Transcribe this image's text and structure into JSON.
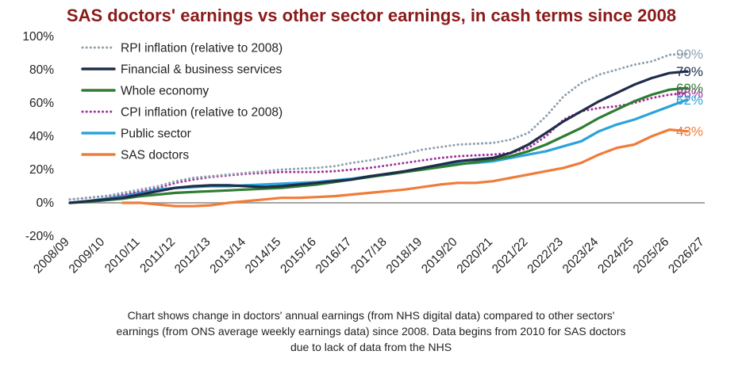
{
  "chart_data": {
    "type": "line",
    "title": "SAS doctors' earnings vs other sector earnings, in cash terms since 2008",
    "title_color": "#8B1A1A",
    "xlabel": "",
    "ylabel": "",
    "ylim": [
      -20,
      100
    ],
    "yticks": [
      -20,
      0,
      20,
      40,
      60,
      80,
      100
    ],
    "ytick_labels": [
      "-20%",
      "0%",
      "20%",
      "40%",
      "60%",
      "80%",
      "100%"
    ],
    "x_range": [
      0,
      18
    ],
    "categories": [
      "2008/09",
      "2009/10",
      "2010/11",
      "2011/12",
      "2012/13",
      "2013/14",
      "2014/15",
      "2015/16",
      "2016/17",
      "2017/18",
      "2018/19",
      "2019/20",
      "2020/21",
      "2021/22",
      "2022/23",
      "2023/24",
      "2024/25",
      "2025/26",
      "2026/27"
    ],
    "zero_line_color": "#999999",
    "series": [
      {
        "name": "RPI inflation (relative to 2008)",
        "color": "#8FA0AD",
        "style": "dotted",
        "end_label": "90%",
        "x": [
          0,
          0.5,
          1,
          1.5,
          2,
          2.5,
          3,
          3.5,
          4,
          4.5,
          5,
          5.5,
          6,
          6.5,
          7,
          7.5,
          8,
          8.5,
          9,
          9.5,
          10,
          10.5,
          11,
          11.5,
          12,
          12.5,
          13,
          13.5,
          14,
          14.5,
          15,
          15.5,
          16,
          16.5,
          17,
          17.5
        ],
        "y": [
          2,
          3,
          4,
          6,
          8,
          10,
          13,
          15,
          16,
          17,
          18,
          19,
          20,
          20.5,
          21,
          22,
          24,
          25.5,
          27.5,
          29.5,
          32,
          33.5,
          35,
          35.5,
          36,
          38,
          42,
          52,
          64,
          72,
          77,
          80,
          83,
          85,
          89,
          89.5
        ]
      },
      {
        "name": "Financial & business services",
        "color": "#1F2D4A",
        "style": "solid",
        "end_label": "79%",
        "x": [
          0,
          0.5,
          1,
          1.5,
          2,
          2.5,
          3,
          3.5,
          4,
          4.5,
          5,
          5.5,
          6,
          6.5,
          7,
          7.5,
          8,
          8.5,
          9,
          9.5,
          10,
          10.5,
          11,
          11.5,
          12,
          12.5,
          13,
          13.5,
          14,
          14.5,
          15,
          15.5,
          16,
          16.5,
          17,
          17.5
        ],
        "y": [
          0,
          1,
          2,
          3,
          5,
          7,
          9,
          10,
          10.5,
          10.5,
          10,
          9.5,
          10,
          11,
          12,
          13,
          14,
          16,
          17.5,
          19,
          21,
          23,
          25,
          26,
          27,
          30,
          35,
          42,
          49,
          55,
          61,
          66,
          71,
          75,
          78,
          79
        ]
      },
      {
        "name": "Whole economy",
        "color": "#2E7D32",
        "style": "solid",
        "end_label": "69%",
        "x": [
          0,
          0.5,
          1,
          1.5,
          2,
          2.5,
          3,
          3.5,
          4,
          4.5,
          5,
          5.5,
          6,
          6.5,
          7,
          7.5,
          8,
          8.5,
          9,
          9.5,
          10,
          10.5,
          11,
          11.5,
          12,
          12.5,
          13,
          13.5,
          14,
          14.5,
          15,
          15.5,
          16,
          16.5,
          17,
          17.5
        ],
        "y": [
          0,
          0.5,
          1.5,
          2.5,
          4,
          5,
          6,
          6.5,
          7,
          7.5,
          8,
          8.5,
          9,
          10,
          11,
          12.5,
          14,
          15.5,
          17,
          18.5,
          20,
          21.5,
          23,
          24.5,
          26,
          28,
          31,
          35,
          40,
          45,
          51,
          56,
          61,
          65,
          68,
          69
        ]
      },
      {
        "name": "CPI inflation (relative to 2008)",
        "color": "#A0329A",
        "style": "dotted",
        "end_label": "66%",
        "x": [
          0,
          0.5,
          1,
          1.5,
          2,
          2.5,
          3,
          3.5,
          4,
          4.5,
          5,
          5.5,
          6,
          6.5,
          7,
          7.5,
          8,
          8.5,
          9,
          9.5,
          10,
          10.5,
          11,
          11.5,
          12,
          12.5,
          13,
          13.5,
          14,
          14.5,
          15,
          15.5,
          16,
          16.5,
          17,
          17.5
        ],
        "y": [
          2,
          3,
          4,
          5,
          7,
          9,
          12,
          14,
          15.5,
          16.5,
          17.5,
          18,
          18.5,
          18.5,
          18.5,
          19,
          20,
          21,
          22.5,
          24,
          25.5,
          27,
          28,
          28.5,
          29,
          30,
          33,
          40,
          50,
          55,
          57,
          58,
          60,
          63,
          65,
          66
        ]
      },
      {
        "name": "Public sector",
        "color": "#2BA3DB",
        "style": "solid",
        "end_label": "62%",
        "x": [
          0,
          0.5,
          1,
          1.5,
          2,
          2.5,
          3,
          3.5,
          4,
          4.5,
          5,
          5.5,
          6,
          6.5,
          7,
          7.5,
          8,
          8.5,
          9,
          9.5,
          10,
          10.5,
          11,
          11.5,
          12,
          12.5,
          13,
          13.5,
          14,
          14.5,
          15,
          15.5,
          16,
          16.5,
          17,
          17.5
        ],
        "y": [
          0,
          1,
          2.5,
          4,
          6,
          8,
          9,
          9.5,
          10,
          10,
          10.5,
          11,
          11.5,
          12,
          12.5,
          13.5,
          14.5,
          16,
          17,
          18.5,
          20,
          22,
          23.5,
          24,
          25,
          27,
          29,
          31,
          34,
          37,
          43,
          47,
          50,
          54,
          58,
          62
        ]
      },
      {
        "name": "SAS doctors",
        "color": "#F07C3A",
        "style": "solid",
        "end_label": "43%",
        "x": [
          1.5,
          2,
          2.5,
          3,
          3.5,
          4,
          4.5,
          5,
          5.5,
          6,
          6.5,
          7,
          7.5,
          8,
          8.5,
          9,
          9.5,
          10,
          10.5,
          11,
          11.5,
          12,
          12.5,
          13,
          13.5,
          14,
          14.5,
          15,
          15.5,
          16,
          16.5,
          17,
          17.5
        ],
        "y": [
          0,
          0,
          -1,
          -2,
          -2,
          -1.5,
          0,
          1,
          2,
          3,
          3,
          3.5,
          4,
          5,
          6,
          7,
          8,
          9.5,
          11,
          12,
          12,
          13,
          15,
          17,
          19,
          21,
          24,
          29,
          33,
          35,
          40,
          44,
          43
        ]
      }
    ]
  },
  "caption": {
    "line1": "Chart shows change in doctors' annual earnings (from NHS digital data) compared to other sectors'",
    "line2": "earnings (from ONS average weekly earnings data) since 2008. Data begins from 2010 for SAS doctors",
    "line3": "due to lack of data from the NHS"
  }
}
